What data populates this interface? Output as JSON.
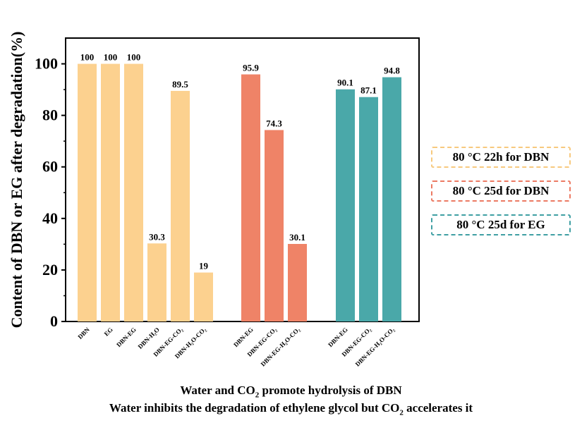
{
  "chart_data": {
    "type": "bar",
    "ylabel": "Content of DBN or EG after degradation(%)",
    "ylim": [
      0,
      110
    ],
    "yticks": [
      0,
      20,
      40,
      60,
      80,
      100
    ],
    "grid": false,
    "groups": [
      {
        "name": "80 °C 22h for DBN",
        "color": "#fcd18f",
        "bars": [
          {
            "label": "DBN",
            "value": 100,
            "value_label": "100"
          },
          {
            "label": "EG",
            "value": 100,
            "value_label": "100"
          },
          {
            "label": "DBN-EG",
            "value": 100,
            "value_label": "100"
          },
          {
            "label": "DBN-H₂O",
            "value": 30.3,
            "value_label": "30.3"
          },
          {
            "label": "DBN-EG-CO₂",
            "value": 89.5,
            "value_label": "89.5"
          },
          {
            "label": "DBN-H₂O-CO₂",
            "value": 19,
            "value_label": "19"
          }
        ]
      },
      {
        "name": "80 °C 25d for DBN",
        "color": "#ef8367",
        "bars": [
          {
            "label": "DBN-EG",
            "value": 95.9,
            "value_label": "95.9"
          },
          {
            "label": "DBN-EG-CO₂",
            "value": 74.3,
            "value_label": "74.3"
          },
          {
            "label": "DBN-EG-H₂O-CO₂",
            "value": 30.1,
            "value_label": "30.1"
          }
        ]
      },
      {
        "name": "80 °C 25d for EG",
        "color": "#4aa8a9",
        "bars": [
          {
            "label": "DBN-EG",
            "value": 90.1,
            "value_label": "90.1"
          },
          {
            "label": "DBN-EG-CO₂",
            "value": 87.1,
            "value_label": "87.1"
          },
          {
            "label": "DBN-EG-H₂O-CO₂",
            "value": 94.8,
            "value_label": "94.8"
          }
        ]
      }
    ],
    "legend": [
      {
        "label": "80 °C 22h for DBN",
        "color": "#f7c97e"
      },
      {
        "label": "80 °C 25d for DBN",
        "color": "#ec7a63"
      },
      {
        "label": "80 °C 25d for EG",
        "color": "#3f9fa3"
      }
    ],
    "legend_position": "right"
  },
  "captions": {
    "line1_pre": "Water and CO",
    "line1_sub": "2",
    "line1_post": " promote hydrolysis of DBN",
    "line2_pre": "Water inhibits the degradation of ethylene glycol but CO",
    "line2_sub": "2",
    "line2_post": " accelerates it"
  }
}
